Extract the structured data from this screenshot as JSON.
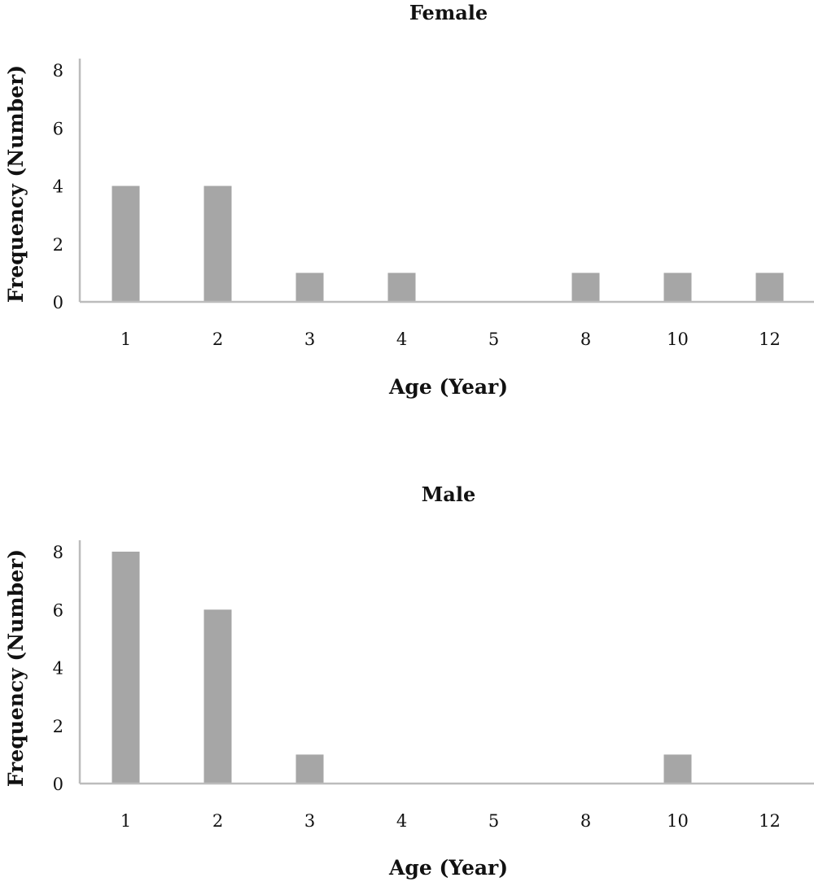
{
  "chart_data": [
    {
      "type": "bar",
      "title": "Female",
      "xlabel": "Age (Year)",
      "ylabel": "Frequency (Number)",
      "categories": [
        "1",
        "2",
        "3",
        "4",
        "5",
        "8",
        "10",
        "12"
      ],
      "values": [
        4,
        4,
        1,
        1,
        0,
        1,
        1,
        1
      ],
      "ylim": [
        0,
        8
      ],
      "yticks": [
        "0",
        "2",
        "4",
        "6",
        "8"
      ],
      "grid": false,
      "legend": "none",
      "bar_color": "#a6a6a6",
      "axis_color": "#bcbcbc"
    },
    {
      "type": "bar",
      "title": "Male",
      "xlabel": "Age (Year)",
      "ylabel": "Frequency (Number)",
      "categories": [
        "1",
        "2",
        "3",
        "4",
        "5",
        "8",
        "10",
        "12"
      ],
      "values": [
        8,
        6,
        1,
        0,
        0,
        0,
        1,
        0
      ],
      "ylim": [
        0,
        8
      ],
      "yticks": [
        "0",
        "2",
        "4",
        "6",
        "8"
      ],
      "grid": false,
      "legend": "none",
      "bar_color": "#a6a6a6",
      "axis_color": "#bcbcbc"
    }
  ]
}
